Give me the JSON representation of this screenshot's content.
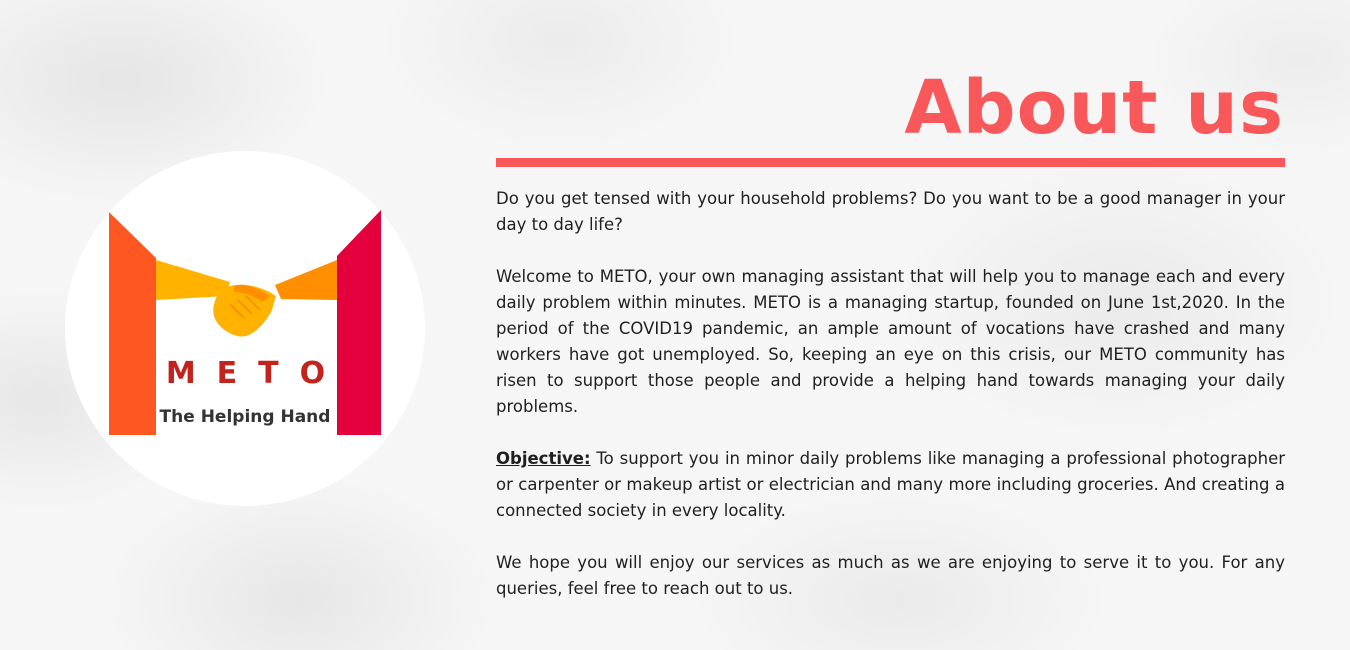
{
  "logo": {
    "brand": "METO",
    "tagline": "The Helping Hand",
    "icon": "handshake-icon",
    "colors": {
      "left_bar": "#ff5722",
      "right_bar": "#e4003c",
      "hand_left": "#ffb300",
      "hand_right": "#ff8f00",
      "text": "#c3231d"
    }
  },
  "about": {
    "title": "About us",
    "accent_color": "#f9585a",
    "paragraphs": [
      "Do you get tensed with your household problems? Do you want to be a good manager in your day to day life?",
      "Welcome to METO, your own managing assistant that will help you to manage each and every daily problem within minutes. METO is a managing startup, founded on June 1st,2020. In the period of the COVID19 pandemic, an ample amount of vocations have crashed and many workers have got unemployed. So, keeping an eye on this crisis, our METO community has risen to support those people and provide a helping hand towards managing your daily problems."
    ],
    "objective": {
      "label": "Objective:",
      "text": "To support you in minor daily problems like managing a professional photographer or carpenter or makeup artist or electrician and many more including groceries. And creating a connected society in every locality."
    },
    "closing": "We hope you will enjoy our services as much as we are enjoying to serve it to you. For any queries, feel free to reach out to us."
  }
}
